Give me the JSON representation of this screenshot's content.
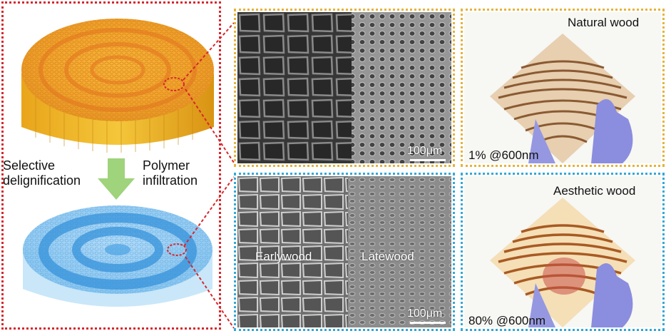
{
  "left_panel": {
    "label_left_line1": "Selective",
    "label_left_line2": "delignification",
    "label_right_line1": "Polymer",
    "label_right_line2": "infiltration"
  },
  "sem_top": {
    "scale_label": "100μm"
  },
  "sem_bottom": {
    "earlywood_label": "Earlywood",
    "latewood_label": "Latewood",
    "scale_label": "100μm"
  },
  "photo_top": {
    "title": "Natural wood",
    "transmittance": "1% @600nm"
  },
  "photo_bottom": {
    "title": "Aesthetic wood",
    "transmittance": "80% @600nm"
  },
  "colors": {
    "red_frame": "#d8262b",
    "yellow_frame": "#e6b33a",
    "blue_frame": "#33a9d6",
    "arrow_green": "#9fd37c",
    "orange_wood": "#f1ac32",
    "blue_wood": "#56aee9"
  }
}
